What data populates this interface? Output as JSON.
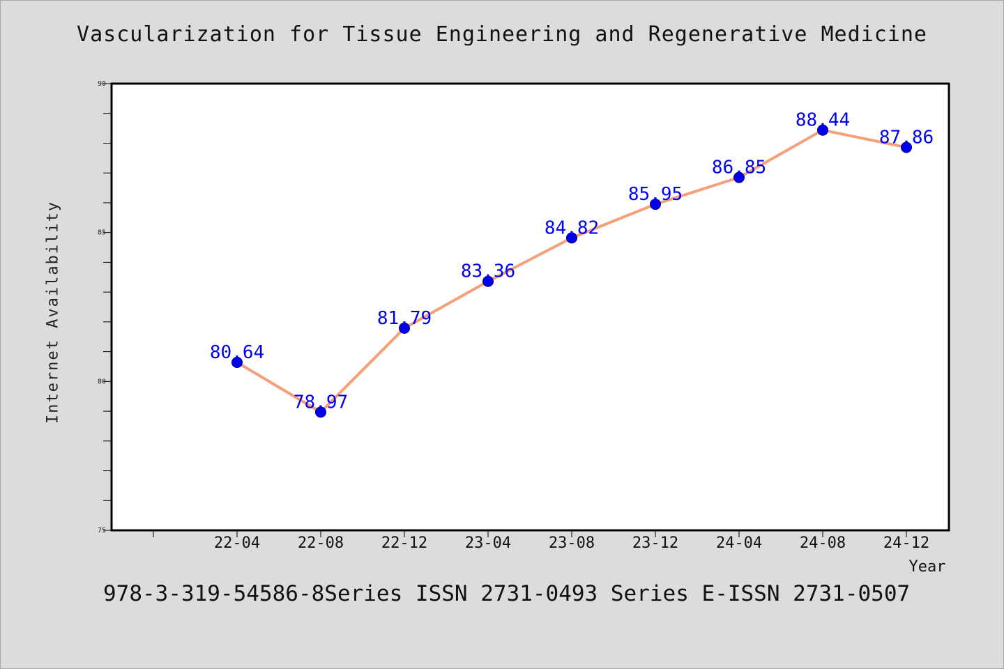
{
  "chart_data": {
    "type": "line",
    "title": "Vascularization for Tissue Engineering and Regenerative Medicine",
    "xlabel": "Year",
    "ylabel": "Internet Availability",
    "categories": [
      "22-04",
      "22-08",
      "22-12",
      "23-04",
      "23-08",
      "23-12",
      "24-04",
      "24-08",
      "24-12"
    ],
    "values": [
      80.64,
      78.97,
      81.79,
      83.36,
      84.82,
      85.95,
      86.85,
      88.44,
      87.86
    ],
    "data_labels": [
      "80.64",
      "78.97",
      "81.79",
      "83.36",
      "84.82",
      "85.95",
      "86.85",
      "88.44",
      "87.86"
    ],
    "ylim": [
      75,
      90
    ],
    "yticks": [
      75,
      80,
      85,
      90
    ],
    "grid": false,
    "line_color": "#f4a07a",
    "marker_color": "#0000ee",
    "label_color": "#0000ee"
  },
  "footer": "978-3-319-54586-8Series ISSN 2731-0493 Series E-ISSN 2731-0507"
}
